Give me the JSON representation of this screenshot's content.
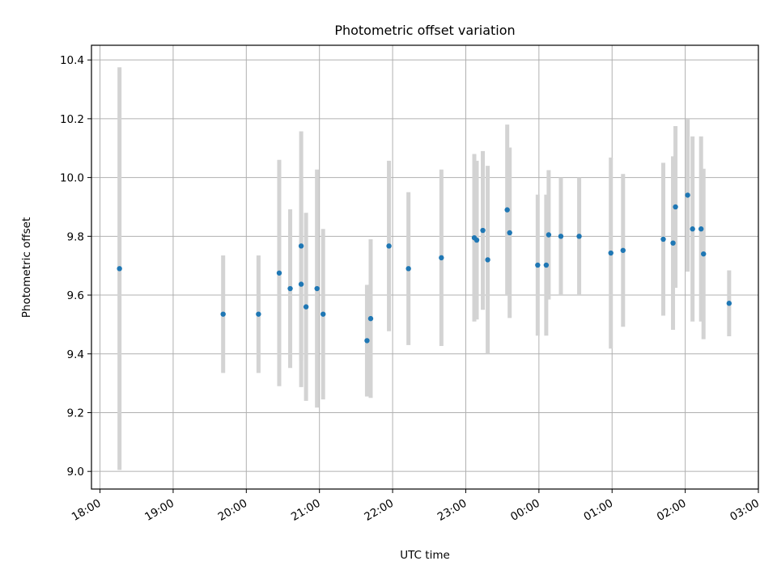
{
  "chart_data": {
    "type": "scatter",
    "title": "Photometric offset variation",
    "xlabel": "UTC time",
    "ylabel": "Photometric offset",
    "x_tick_labels": [
      "18:00",
      "19:00",
      "20:00",
      "21:00",
      "22:00",
      "23:00",
      "00:00",
      "01:00",
      "02:00",
      "03:00"
    ],
    "y_tick_labels": [
      "9.0",
      "9.2",
      "9.4",
      "9.6",
      "9.8",
      "10.0",
      "10.2",
      "10.4"
    ],
    "xlim": [
      "17:53",
      "03:00"
    ],
    "ylim": [
      8.94,
      10.45
    ],
    "grid": true,
    "colors": {
      "point": "#1f77b4",
      "errorbar": "#d3d3d3",
      "grid": "#b0b0b0"
    },
    "series": [
      {
        "points": [
          {
            "x": "18:16",
            "y": 9.69,
            "err": 0.685
          },
          {
            "x": "19:41",
            "y": 9.535,
            "err": 0.2
          },
          {
            "x": "20:10",
            "y": 9.535,
            "err": 0.2
          },
          {
            "x": "20:27",
            "y": 9.675,
            "err": 0.385
          },
          {
            "x": "20:36",
            "y": 9.622,
            "err": 0.27
          },
          {
            "x": "20:45",
            "y": 9.767,
            "err": 0.39
          },
          {
            "x": "20:45",
            "y": 9.637,
            "err": 0.35
          },
          {
            "x": "20:49",
            "y": 9.56,
            "err": 0.32
          },
          {
            "x": "20:58",
            "y": 9.622,
            "err": 0.405
          },
          {
            "x": "21:03",
            "y": 9.535,
            "err": 0.29
          },
          {
            "x": "21:39",
            "y": 9.445,
            "err": 0.19
          },
          {
            "x": "21:42",
            "y": 9.52,
            "err": 0.27
          },
          {
            "x": "21:57",
            "y": 9.767,
            "err": 0.29
          },
          {
            "x": "22:13",
            "y": 9.69,
            "err": 0.26
          },
          {
            "x": "22:40",
            "y": 9.727,
            "err": 0.3
          },
          {
            "x": "23:07",
            "y": 9.795,
            "err": 0.285
          },
          {
            "x": "23:09",
            "y": 9.787,
            "err": 0.27
          },
          {
            "x": "23:14",
            "y": 9.82,
            "err": 0.27
          },
          {
            "x": "23:18",
            "y": 9.72,
            "err": 0.32
          },
          {
            "x": "23:34",
            "y": 9.89,
            "err": 0.29
          },
          {
            "x": "23:36",
            "y": 9.812,
            "err": 0.29
          },
          {
            "x": "23:59",
            "y": 9.702,
            "err": 0.24
          },
          {
            "x": "00:06",
            "y": 9.702,
            "err": 0.24
          },
          {
            "x": "00:08",
            "y": 9.805,
            "err": 0.22
          },
          {
            "x": "00:18",
            "y": 9.8,
            "err": 0.2
          },
          {
            "x": "00:33",
            "y": 9.8,
            "err": 0.2
          },
          {
            "x": "00:59",
            "y": 9.743,
            "err": 0.325
          },
          {
            "x": "01:09",
            "y": 9.752,
            "err": 0.26
          },
          {
            "x": "01:42",
            "y": 9.79,
            "err": 0.26
          },
          {
            "x": "01:50",
            "y": 9.777,
            "err": 0.295
          },
          {
            "x": "01:52",
            "y": 9.9,
            "err": 0.275
          },
          {
            "x": "02:02",
            "y": 9.94,
            "err": 0.26
          },
          {
            "x": "02:06",
            "y": 9.825,
            "err": 0.315
          },
          {
            "x": "02:13",
            "y": 9.825,
            "err": 0.315
          },
          {
            "x": "02:15",
            "y": 9.74,
            "err": 0.29
          },
          {
            "x": "02:36",
            "y": 9.572,
            "err": 0.112
          }
        ]
      }
    ]
  }
}
